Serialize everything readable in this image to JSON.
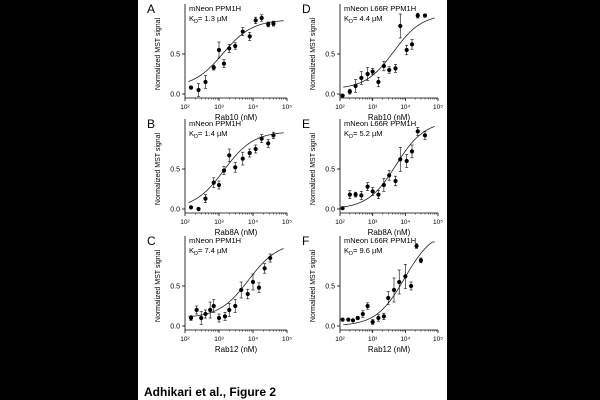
{
  "caption": "Adhikari et al., Figure 2",
  "chart_data": [
    {
      "type": "scatter",
      "panel": "A",
      "title": "mNeon PPM1H",
      "kd": "1.3 µM",
      "xlabel": "Rab10 (nM)",
      "ylabel": "Normalized MST signal",
      "xscale": "log",
      "xlim": [
        100,
        100000
      ],
      "ylim": [
        -0.05,
        1.05
      ],
      "xticks": [
        100,
        1000,
        10000,
        100000
      ],
      "yticks": [
        0.0,
        0.5
      ],
      "fit": {
        "kd_nM": 1300,
        "bottom": 0.08,
        "top": 0.93
      },
      "points": [
        {
          "x": 150,
          "y": 0.08,
          "err": 0.02
        },
        {
          "x": 250,
          "y": 0.05,
          "err": 0.08
        },
        {
          "x": 400,
          "y": 0.15,
          "err": 0.08
        },
        {
          "x": 700,
          "y": 0.33,
          "err": 0.03
        },
        {
          "x": 1000,
          "y": 0.55,
          "err": 0.1
        },
        {
          "x": 1400,
          "y": 0.38,
          "err": 0.05
        },
        {
          "x": 2000,
          "y": 0.57,
          "err": 0.05
        },
        {
          "x": 3000,
          "y": 0.6,
          "err": 0.04
        },
        {
          "x": 5000,
          "y": 0.78,
          "err": 0.05
        },
        {
          "x": 8000,
          "y": 0.72,
          "err": 0.05
        },
        {
          "x": 12000,
          "y": 0.92,
          "err": 0.04
        },
        {
          "x": 18000,
          "y": 0.95,
          "err": 0.04
        },
        {
          "x": 28000,
          "y": 0.87,
          "err": 0.03
        },
        {
          "x": 40000,
          "y": 0.88,
          "err": 0.03
        }
      ]
    },
    {
      "type": "scatter",
      "panel": "D",
      "title": "mNeon L66R PPM1H",
      "kd": "4.4 µM",
      "xlabel": "Rab10 (nM)",
      "ylabel": "Normalized MST signal",
      "xscale": "log",
      "xlim": [
        100,
        100000
      ],
      "ylim": [
        -0.05,
        1.05
      ],
      "xticks": [
        100,
        1000,
        10000,
        100000
      ],
      "yticks": [
        0.0,
        0.5
      ],
      "fit": {
        "kd_nM": 4400,
        "bottom": 0.06,
        "top": 1.0
      },
      "points": [
        {
          "x": 120,
          "y": -0.02,
          "err": 0.01
        },
        {
          "x": 200,
          "y": 0.03,
          "err": 0.03
        },
        {
          "x": 300,
          "y": 0.1,
          "err": 0.08
        },
        {
          "x": 450,
          "y": 0.2,
          "err": 0.08
        },
        {
          "x": 700,
          "y": 0.25,
          "err": 0.08
        },
        {
          "x": 1000,
          "y": 0.28,
          "err": 0.04
        },
        {
          "x": 1500,
          "y": 0.15,
          "err": 0.06
        },
        {
          "x": 2200,
          "y": 0.35,
          "err": 0.06
        },
        {
          "x": 3200,
          "y": 0.3,
          "err": 0.04
        },
        {
          "x": 5000,
          "y": 0.32,
          "err": 0.05
        },
        {
          "x": 7000,
          "y": 0.85,
          "err": 0.15
        },
        {
          "x": 11000,
          "y": 0.55,
          "err": 0.06
        },
        {
          "x": 16000,
          "y": 0.62,
          "err": 0.06
        },
        {
          "x": 24000,
          "y": 0.98,
          "err": 0.03
        },
        {
          "x": 40000,
          "y": 0.98,
          "err": 0.02
        }
      ]
    },
    {
      "type": "scatter",
      "panel": "B",
      "title": "mNeon PPM1H",
      "kd": "1.4 µM",
      "xlabel": "Rab8A (nM)",
      "ylabel": "Normalized MST signal",
      "xscale": "log",
      "xlim": [
        100,
        100000
      ],
      "ylim": [
        -0.05,
        1.05
      ],
      "xticks": [
        100,
        1000,
        10000,
        100000
      ],
      "yticks": [
        0.0,
        0.5
      ],
      "fit": {
        "kd_nM": 1400,
        "bottom": 0.0,
        "top": 0.97
      },
      "points": [
        {
          "x": 150,
          "y": 0.02,
          "err": 0.01
        },
        {
          "x": 250,
          "y": 0.0,
          "err": 0.01
        },
        {
          "x": 400,
          "y": 0.13,
          "err": 0.05
        },
        {
          "x": 700,
          "y": 0.33,
          "err": 0.06
        },
        {
          "x": 1000,
          "y": 0.3,
          "err": 0.05
        },
        {
          "x": 1400,
          "y": 0.48,
          "err": 0.05
        },
        {
          "x": 2000,
          "y": 0.67,
          "err": 0.08
        },
        {
          "x": 3000,
          "y": 0.52,
          "err": 0.06
        },
        {
          "x": 5000,
          "y": 0.63,
          "err": 0.08
        },
        {
          "x": 8000,
          "y": 0.7,
          "err": 0.05
        },
        {
          "x": 12000,
          "y": 0.75,
          "err": 0.05
        },
        {
          "x": 18000,
          "y": 0.88,
          "err": 0.05
        },
        {
          "x": 28000,
          "y": 0.82,
          "err": 0.05
        },
        {
          "x": 40000,
          "y": 0.92,
          "err": 0.04
        }
      ]
    },
    {
      "type": "scatter",
      "panel": "E",
      "title": "mNeon L66R PPM1H",
      "kd": "5.2 µM",
      "xlabel": "Rab8A (nM)",
      "ylabel": "Normalized MST signal",
      "xscale": "log",
      "xlim": [
        100,
        100000
      ],
      "ylim": [
        -0.05,
        1.05
      ],
      "xticks": [
        100,
        1000,
        10000,
        100000
      ],
      "yticks": [
        0.0,
        0.5
      ],
      "fit": {
        "kd_nM": 5200,
        "bottom": 0.0,
        "top": 1.1
      },
      "points": [
        {
          "x": 120,
          "y": 0.01,
          "err": 0.01
        },
        {
          "x": 200,
          "y": 0.18,
          "err": 0.05
        },
        {
          "x": 300,
          "y": 0.18,
          "err": 0.03
        },
        {
          "x": 450,
          "y": 0.17,
          "err": 0.05
        },
        {
          "x": 700,
          "y": 0.28,
          "err": 0.05
        },
        {
          "x": 1000,
          "y": 0.22,
          "err": 0.05
        },
        {
          "x": 1500,
          "y": 0.18,
          "err": 0.05
        },
        {
          "x": 2200,
          "y": 0.3,
          "err": 0.08
        },
        {
          "x": 3200,
          "y": 0.42,
          "err": 0.06
        },
        {
          "x": 5000,
          "y": 0.35,
          "err": 0.06
        },
        {
          "x": 7000,
          "y": 0.62,
          "err": 0.15
        },
        {
          "x": 11000,
          "y": 0.6,
          "err": 0.08
        },
        {
          "x": 16000,
          "y": 0.72,
          "err": 0.08
        },
        {
          "x": 24000,
          "y": 0.97,
          "err": 0.05
        },
        {
          "x": 40000,
          "y": 0.92,
          "err": 0.05
        }
      ]
    },
    {
      "type": "scatter",
      "panel": "C",
      "title": "mNeon PPM1H",
      "kd": "7.4 µM",
      "xlabel": "Rab12 (nM)",
      "ylabel": "Normalized MST signal",
      "xscale": "log",
      "xlim": [
        100,
        100000
      ],
      "ylim": [
        -0.05,
        1.05
      ],
      "xticks": [
        100,
        1000,
        10000,
        100000
      ],
      "yticks": [
        0.0,
        0.5
      ],
      "fit": {
        "kd_nM": 7400,
        "bottom": 0.1,
        "top": 1.05
      },
      "points": [
        {
          "x": 150,
          "y": 0.1,
          "err": 0.03
        },
        {
          "x": 220,
          "y": 0.2,
          "err": 0.05
        },
        {
          "x": 300,
          "y": 0.1,
          "err": 0.08
        },
        {
          "x": 400,
          "y": 0.15,
          "err": 0.05
        },
        {
          "x": 550,
          "y": 0.2,
          "err": 0.1
        },
        {
          "x": 700,
          "y": 0.25,
          "err": 0.08
        },
        {
          "x": 1000,
          "y": 0.1,
          "err": 0.05
        },
        {
          "x": 1500,
          "y": 0.12,
          "err": 0.05
        },
        {
          "x": 2000,
          "y": 0.2,
          "err": 0.08
        },
        {
          "x": 3000,
          "y": 0.25,
          "err": 0.08
        },
        {
          "x": 4500,
          "y": 0.45,
          "err": 0.1
        },
        {
          "x": 7000,
          "y": 0.4,
          "err": 0.06
        },
        {
          "x": 10000,
          "y": 0.55,
          "err": 0.1
        },
        {
          "x": 15000,
          "y": 0.48,
          "err": 0.06
        },
        {
          "x": 22000,
          "y": 0.72,
          "err": 0.06
        },
        {
          "x": 32000,
          "y": 0.85,
          "err": 0.05
        }
      ]
    },
    {
      "type": "scatter",
      "panel": "F",
      "title": "mNeon L66R PPM1H",
      "kd": "9.6 µM",
      "xlabel": "Rab12 (nM)",
      "ylabel": "Normalized MST signal",
      "xscale": "log",
      "xlim": [
        100,
        100000
      ],
      "ylim": [
        -0.05,
        1.05
      ],
      "xticks": [
        100,
        1000,
        10000,
        100000
      ],
      "yticks": [
        0.0,
        0.5
      ],
      "fit": {
        "kd_nM": 9600,
        "bottom": 0.0,
        "top": 1.2
      },
      "points": [
        {
          "x": 120,
          "y": 0.08,
          "err": 0.01
        },
        {
          "x": 180,
          "y": 0.08,
          "err": 0.01
        },
        {
          "x": 250,
          "y": 0.07,
          "err": 0.01
        },
        {
          "x": 350,
          "y": 0.1,
          "err": 0.02
        },
        {
          "x": 500,
          "y": 0.15,
          "err": 0.04
        },
        {
          "x": 700,
          "y": 0.25,
          "err": 0.04
        },
        {
          "x": 1000,
          "y": 0.05,
          "err": 0.03
        },
        {
          "x": 1500,
          "y": 0.1,
          "err": 0.04
        },
        {
          "x": 2200,
          "y": 0.12,
          "err": 0.04
        },
        {
          "x": 3000,
          "y": 0.35,
          "err": 0.08
        },
        {
          "x": 4500,
          "y": 0.45,
          "err": 0.15
        },
        {
          "x": 6500,
          "y": 0.55,
          "err": 0.15
        },
        {
          "x": 10000,
          "y": 0.62,
          "err": 0.15
        },
        {
          "x": 15000,
          "y": 0.5,
          "err": 0.05
        },
        {
          "x": 22000,
          "y": 1.0,
          "err": 0.03
        },
        {
          "x": 30000,
          "y": 0.82,
          "err": 0.03
        }
      ]
    }
  ]
}
